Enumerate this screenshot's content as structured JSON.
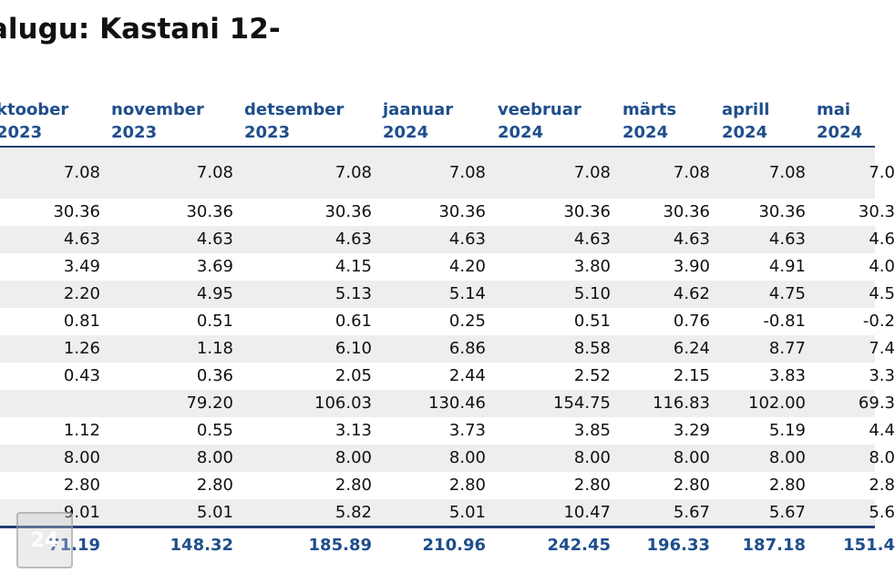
{
  "title": "alugu: Kastani 12-",
  "columns": [
    {
      "l1": "ktoober",
      "l2": "2023"
    },
    {
      "l1": "november",
      "l2": "2023"
    },
    {
      "l1": "detsember",
      "l2": "2023"
    },
    {
      "l1": "jaanuar",
      "l2": "2024"
    },
    {
      "l1": "veebruar",
      "l2": "2024"
    },
    {
      "l1": "märts",
      "l2": "2024"
    },
    {
      "l1": "aprill",
      "l2": "2024"
    },
    {
      "l1": "mai",
      "l2": "2024"
    }
  ],
  "rows": [
    [
      "7.08",
      "7.08",
      "7.08",
      "7.08",
      "7.08",
      "7.08",
      "7.08",
      "7.0"
    ],
    [
      "30.36",
      "30.36",
      "30.36",
      "30.36",
      "30.36",
      "30.36",
      "30.36",
      "30.3"
    ],
    [
      "4.63",
      "4.63",
      "4.63",
      "4.63",
      "4.63",
      "4.63",
      "4.63",
      "4.6"
    ],
    [
      "3.49",
      "3.69",
      "4.15",
      "4.20",
      "3.80",
      "3.90",
      "4.91",
      "4.0"
    ],
    [
      "2.20",
      "4.95",
      "5.13",
      "5.14",
      "5.10",
      "4.62",
      "4.75",
      "4.5"
    ],
    [
      "0.81",
      "0.51",
      "0.61",
      "0.25",
      "0.51",
      "0.76",
      "-0.81",
      "-0.2"
    ],
    [
      "1.26",
      "1.18",
      "6.10",
      "6.86",
      "8.58",
      "6.24",
      "8.77",
      "7.4"
    ],
    [
      "0.43",
      "0.36",
      "2.05",
      "2.44",
      "2.52",
      "2.15",
      "3.83",
      "3.3"
    ],
    [
      "",
      "79.20",
      "106.03",
      "130.46",
      "154.75",
      "116.83",
      "102.00",
      "69.3"
    ],
    [
      "1.12",
      "0.55",
      "3.13",
      "3.73",
      "3.85",
      "3.29",
      "5.19",
      "4.4"
    ],
    [
      "8.00",
      "8.00",
      "8.00",
      "8.00",
      "8.00",
      "8.00",
      "8.00",
      "8.0"
    ],
    [
      "2.80",
      "2.80",
      "2.80",
      "2.80",
      "2.80",
      "2.80",
      "2.80",
      "2.8"
    ],
    [
      "9.01",
      "5.01",
      "5.82",
      "5.01",
      "10.47",
      "5.67",
      "5.67",
      "5.6"
    ]
  ],
  "totals": [
    "71.19",
    "148.32",
    "185.89",
    "210.96",
    "242.45",
    "196.33",
    "187.18",
    "151.4"
  ],
  "watermark": "24",
  "colors": {
    "header_text": "#1f4e8c",
    "rule": "#1f3f73",
    "row_shade": "#eeeeee"
  }
}
